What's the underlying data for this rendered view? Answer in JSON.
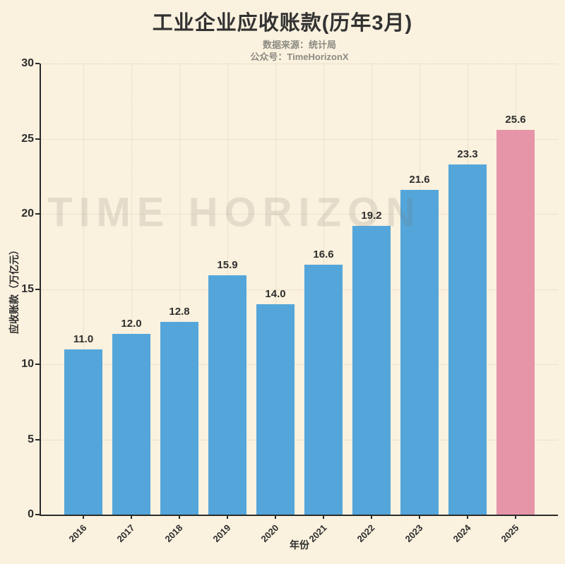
{
  "header": {
    "title": "工业企业应收账款(历年3月)",
    "subtitle1": "数据来源：统计局",
    "subtitle2": "公众号：TimeHorizonX"
  },
  "watermark": {
    "text": "TIME HORIZON"
  },
  "colors": {
    "background": "#FAF1DE",
    "bar": "#54A6DA",
    "highlight": "#E695A9",
    "axis": "#2B2B2B",
    "grid": "#DFD5BC",
    "label_text": "#2E2E2E",
    "subtitle_text": "#8C8B83"
  },
  "chart_data": {
    "type": "bar",
    "title": "工业企业应收账款(历年3月)",
    "subtitle": "数据来源：统计局 / 公众号：TimeHorizonX",
    "categories": [
      "2016",
      "2017",
      "2018",
      "2019",
      "2020",
      "2021",
      "2022",
      "2023",
      "2024",
      "2025"
    ],
    "values": [
      11.0,
      12.0,
      12.8,
      15.9,
      14.0,
      16.6,
      19.2,
      21.6,
      23.3,
      25.6
    ],
    "bar_labels": [
      "11.0",
      "12.0",
      "12.8",
      "15.9",
      "14.0",
      "16.6",
      "19.2",
      "21.6",
      "23.3",
      "25.6"
    ],
    "xlabel": "年份",
    "ylabel": "应收账款（万亿元）",
    "ylim": [
      0,
      30
    ],
    "yticks": [
      0,
      5,
      10,
      15,
      20,
      25,
      30
    ],
    "grid": "dotted, horizontal at yticks and vertical at bar centers",
    "legend": "none",
    "highlight_index": 9,
    "annotation": "2025 bar highlighted in pink; watermark TIME HORIZON across plot"
  }
}
